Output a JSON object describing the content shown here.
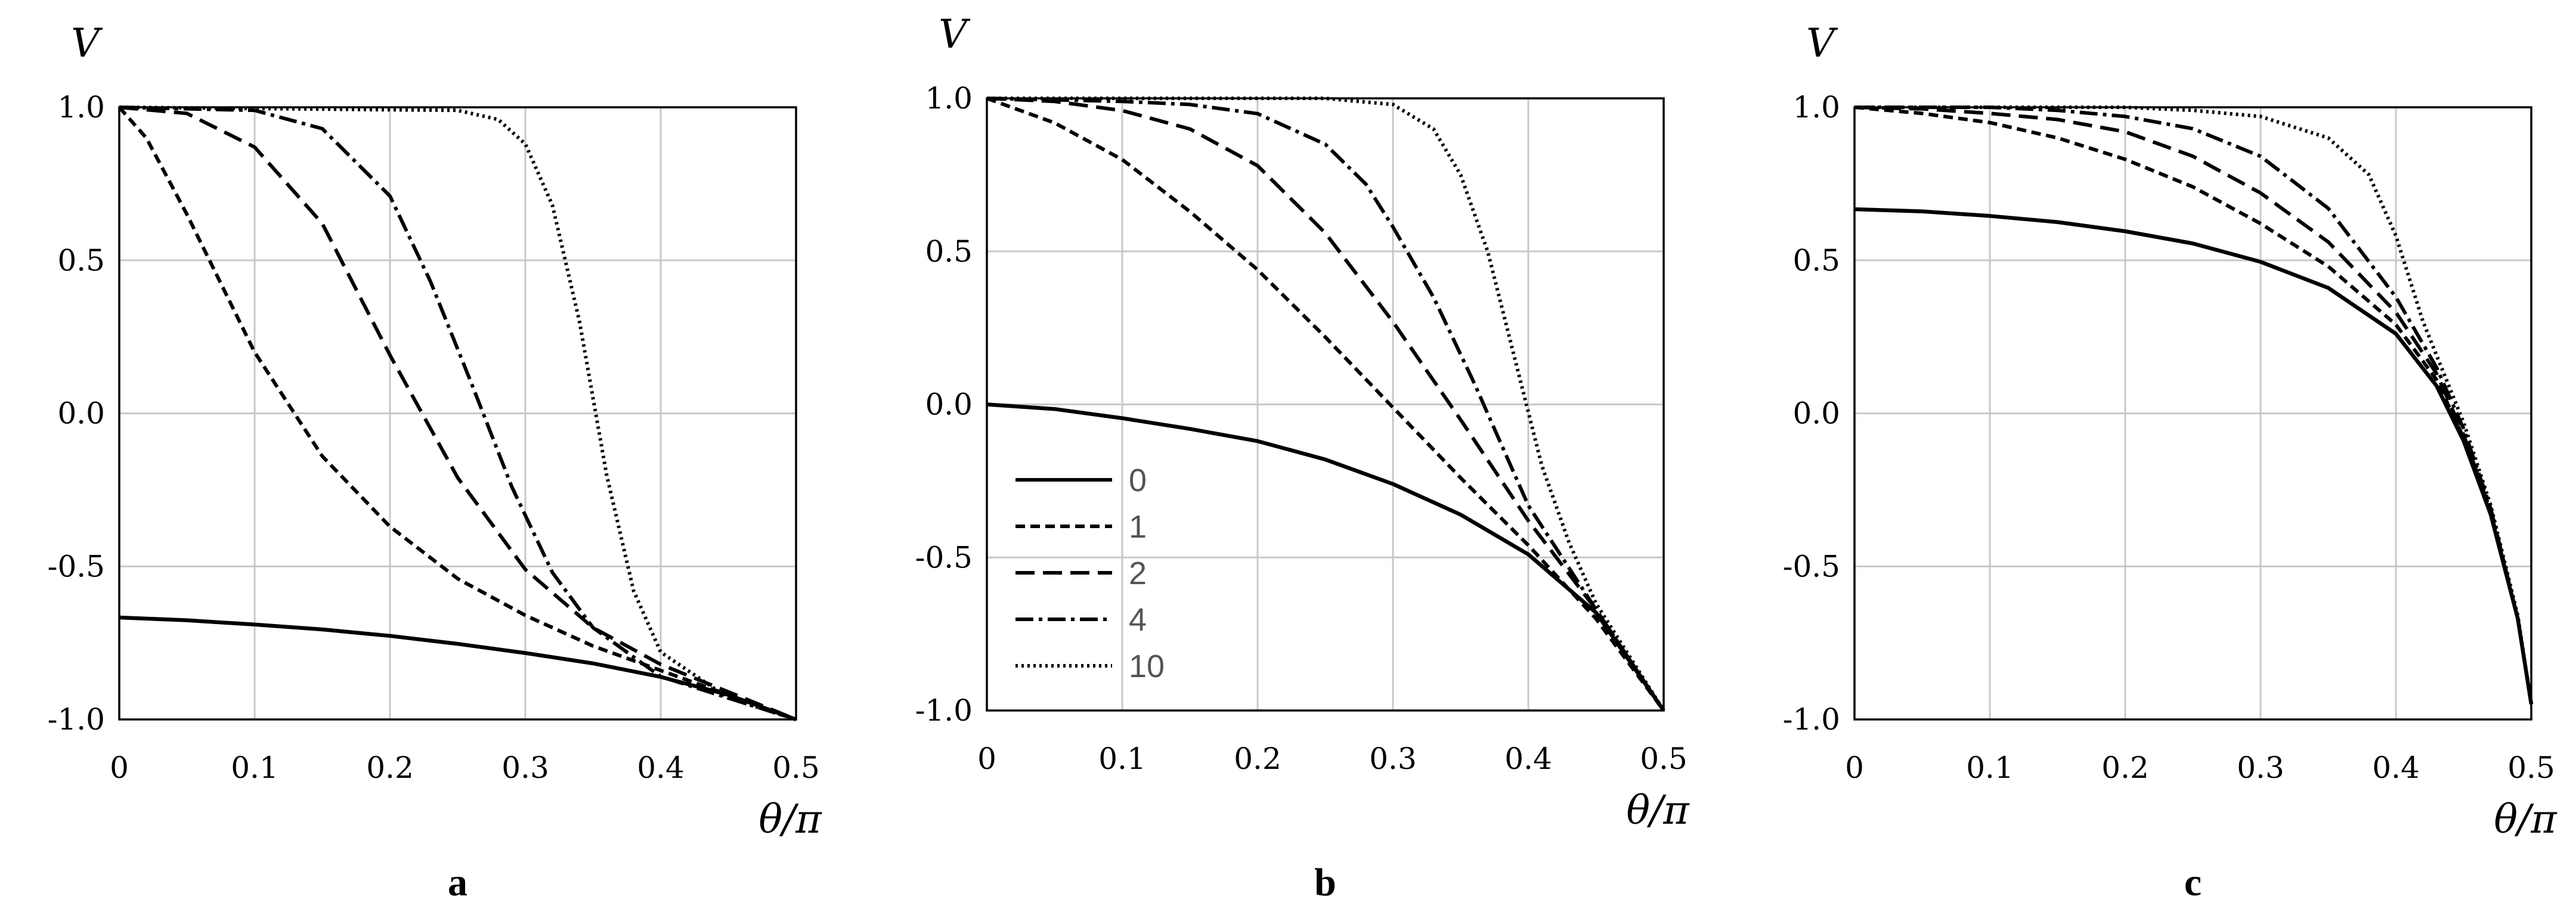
{
  "chart_data": [
    {
      "type": "line",
      "panel_label": "a",
      "ylabel": "V",
      "xlabel": "θ/π",
      "xlim": [
        0,
        0.5
      ],
      "ylim": [
        -1.0,
        1.0
      ],
      "x_ticks": [
        "0",
        "0.1",
        "0.2",
        "0.3",
        "0.4",
        "0.5"
      ],
      "y_ticks": [
        "1.0",
        "0.5",
        "0.0",
        "-0.5",
        "-1.0"
      ],
      "grid": true,
      "series": [
        {
          "name": "0",
          "style": "solid",
          "x": [
            0,
            0.05,
            0.1,
            0.15,
            0.2,
            0.25,
            0.3,
            0.35,
            0.4,
            0.45,
            0.5
          ],
          "y": [
            -0.667,
            -0.676,
            -0.69,
            -0.706,
            -0.727,
            -0.753,
            -0.783,
            -0.817,
            -0.861,
            -0.92,
            -1.0
          ]
        },
        {
          "name": "1",
          "style": "short-dash",
          "x": [
            0,
            0.02,
            0.05,
            0.08,
            0.1,
            0.15,
            0.2,
            0.25,
            0.3,
            0.35,
            0.4,
            0.45,
            0.5
          ],
          "y": [
            1.0,
            0.9,
            0.65,
            0.38,
            0.2,
            -0.14,
            -0.37,
            -0.54,
            -0.66,
            -0.76,
            -0.84,
            -0.92,
            -1.0
          ]
        },
        {
          "name": "2",
          "style": "long-dash",
          "x": [
            0,
            0.05,
            0.1,
            0.15,
            0.2,
            0.25,
            0.3,
            0.35,
            0.4,
            0.45,
            0.5
          ],
          "y": [
            1.0,
            0.98,
            0.87,
            0.62,
            0.19,
            -0.21,
            -0.51,
            -0.7,
            -0.82,
            -0.91,
            -1.0
          ]
        },
        {
          "name": "4",
          "style": "dash-dot",
          "x": [
            0,
            0.1,
            0.15,
            0.2,
            0.23,
            0.26,
            0.29,
            0.32,
            0.35,
            0.4,
            0.45,
            0.5
          ],
          "y": [
            1.0,
            0.99,
            0.93,
            0.71,
            0.43,
            0.1,
            -0.24,
            -0.52,
            -0.7,
            -0.86,
            -0.93,
            -1.0
          ]
        },
        {
          "name": "10",
          "style": "dotted",
          "x": [
            0,
            0.25,
            0.28,
            0.3,
            0.32,
            0.34,
            0.36,
            0.38,
            0.4,
            0.45,
            0.5
          ],
          "y": [
            1.0,
            0.99,
            0.96,
            0.88,
            0.68,
            0.3,
            -0.2,
            -0.58,
            -0.78,
            -0.93,
            -1.0
          ]
        }
      ]
    },
    {
      "type": "line",
      "panel_label": "b",
      "ylabel": "V",
      "xlabel": "θ/π",
      "xlim": [
        0,
        0.5
      ],
      "ylim": [
        -1.0,
        1.0
      ],
      "x_ticks": [
        "0",
        "0.1",
        "0.2",
        "0.3",
        "0.4",
        "0.5"
      ],
      "y_ticks": [
        "1.0",
        "0.5",
        "0.0",
        "-0.5",
        "-1.0"
      ],
      "grid": true,
      "legend_position": "lower-left",
      "series": [
        {
          "name": "0",
          "style": "solid",
          "x": [
            0,
            0.05,
            0.1,
            0.15,
            0.2,
            0.25,
            0.3,
            0.35,
            0.4,
            0.45,
            0.5
          ],
          "y": [
            0.0,
            -0.015,
            -0.045,
            -0.08,
            -0.12,
            -0.18,
            -0.26,
            -0.36,
            -0.49,
            -0.68,
            -1.0
          ]
        },
        {
          "name": "1",
          "style": "short-dash",
          "x": [
            0,
            0.05,
            0.1,
            0.15,
            0.2,
            0.25,
            0.3,
            0.35,
            0.4,
            0.45,
            0.5
          ],
          "y": [
            1.0,
            0.92,
            0.8,
            0.63,
            0.44,
            0.22,
            -0.01,
            -0.24,
            -0.46,
            -0.7,
            -1.0
          ]
        },
        {
          "name": "2",
          "style": "long-dash",
          "x": [
            0,
            0.05,
            0.1,
            0.15,
            0.2,
            0.25,
            0.3,
            0.35,
            0.4,
            0.45,
            0.5
          ],
          "y": [
            1.0,
            0.99,
            0.96,
            0.9,
            0.78,
            0.56,
            0.27,
            -0.05,
            -0.38,
            -0.67,
            -1.0
          ]
        },
        {
          "name": "4",
          "style": "dash-dot",
          "x": [
            0,
            0.1,
            0.15,
            0.2,
            0.25,
            0.28,
            0.3,
            0.33,
            0.36,
            0.4,
            0.45,
            0.5
          ],
          "y": [
            1.0,
            0.99,
            0.98,
            0.95,
            0.85,
            0.72,
            0.58,
            0.35,
            0.07,
            -0.33,
            -0.67,
            -1.0
          ]
        },
        {
          "name": "10",
          "style": "dotted",
          "x": [
            0,
            0.25,
            0.3,
            0.33,
            0.35,
            0.37,
            0.39,
            0.41,
            0.43,
            0.45,
            0.5
          ],
          "y": [
            1.0,
            1.0,
            0.98,
            0.9,
            0.75,
            0.5,
            0.15,
            -0.2,
            -0.45,
            -0.65,
            -1.0
          ]
        }
      ]
    },
    {
      "type": "line",
      "panel_label": "c",
      "ylabel": "V",
      "xlabel": "θ/π",
      "xlim": [
        0,
        0.5
      ],
      "ylim": [
        -1.0,
        1.0
      ],
      "x_ticks": [
        "0",
        "0.1",
        "0.2",
        "0.3",
        "0.4",
        "0.5"
      ],
      "y_ticks": [
        "1.0",
        "0.5",
        "0.0",
        "-0.5",
        "-1.0"
      ],
      "grid": true,
      "series": [
        {
          "name": "0",
          "style": "solid",
          "x": [
            0,
            0.05,
            0.1,
            0.15,
            0.2,
            0.25,
            0.3,
            0.35,
            0.4,
            0.43,
            0.45,
            0.47,
            0.49,
            0.5
          ],
          "y": [
            0.667,
            0.66,
            0.645,
            0.625,
            0.595,
            0.555,
            0.495,
            0.41,
            0.26,
            0.09,
            -0.09,
            -0.33,
            -0.67,
            -0.95
          ]
        },
        {
          "name": "1",
          "style": "short-dash",
          "x": [
            0,
            0.05,
            0.1,
            0.15,
            0.2,
            0.25,
            0.3,
            0.35,
            0.4,
            0.43,
            0.45,
            0.47,
            0.49,
            0.5
          ],
          "y": [
            1.0,
            0.98,
            0.95,
            0.9,
            0.83,
            0.74,
            0.62,
            0.48,
            0.29,
            0.11,
            -0.08,
            -0.33,
            -0.67,
            -0.95
          ]
        },
        {
          "name": "2",
          "style": "long-dash",
          "x": [
            0,
            0.05,
            0.1,
            0.15,
            0.2,
            0.25,
            0.3,
            0.35,
            0.4,
            0.43,
            0.45,
            0.47,
            0.49,
            0.5
          ],
          "y": [
            1.0,
            0.995,
            0.98,
            0.96,
            0.92,
            0.84,
            0.72,
            0.56,
            0.33,
            0.13,
            -0.07,
            -0.32,
            -0.67,
            -0.95
          ]
        },
        {
          "name": "4",
          "style": "dash-dot",
          "x": [
            0,
            0.1,
            0.15,
            0.2,
            0.25,
            0.3,
            0.35,
            0.4,
            0.43,
            0.45,
            0.47,
            0.49,
            0.5
          ],
          "y": [
            1.0,
            1.0,
            0.99,
            0.97,
            0.93,
            0.84,
            0.67,
            0.38,
            0.15,
            -0.05,
            -0.31,
            -0.67,
            -0.95
          ]
        },
        {
          "name": "10",
          "style": "dotted",
          "x": [
            0,
            0.2,
            0.25,
            0.3,
            0.35,
            0.38,
            0.4,
            0.42,
            0.45,
            0.47,
            0.49,
            0.5
          ],
          "y": [
            1.0,
            1.0,
            0.99,
            0.97,
            0.9,
            0.78,
            0.58,
            0.3,
            -0.03,
            -0.3,
            -0.66,
            -0.95
          ]
        }
      ]
    }
  ]
}
